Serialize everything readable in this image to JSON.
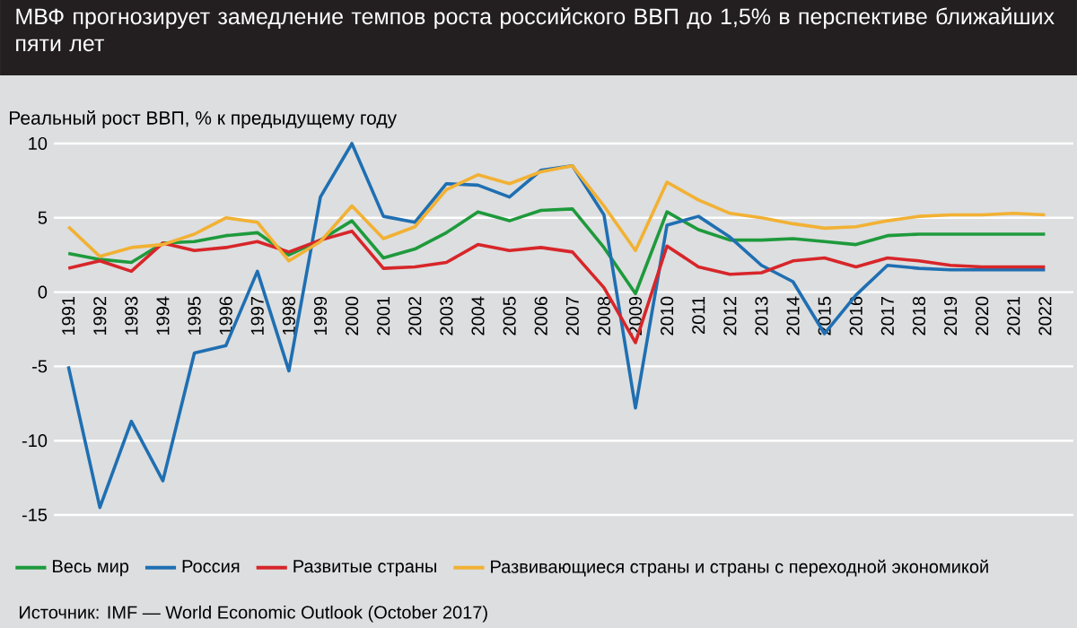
{
  "chart_data": {
    "type": "line",
    "title": "МВФ прогнозирует замедление темпов роста российского ВВП до 1,5% в перспективе ближайших пяти лет",
    "ylabel": "Реальный рост ВВП, % к предыдущему году",
    "annotations": [
      "Источник: IMF — World Economic Outlook (October 2017)"
    ],
    "categories": [
      "1991",
      "1992",
      "1993",
      "1994",
      "1995",
      "1996",
      "1997",
      "1998",
      "1999",
      "2000",
      "2001",
      "2002",
      "2003",
      "2004",
      "2005",
      "2006",
      "2007",
      "2008",
      "2009",
      "2010",
      "2011",
      "2012",
      "2013",
      "2014",
      "2015",
      "2016",
      "2017",
      "2018",
      "2019",
      "2020",
      "2021",
      "2022"
    ],
    "ylim": [
      -15,
      10
    ],
    "yticks": [
      -15,
      -10,
      -5,
      0,
      5,
      10
    ],
    "grid": "y",
    "legend": "bottom",
    "series": [
      {
        "name": "Весь мир",
        "color": "#1e9a3c",
        "values": [
          2.6,
          2.2,
          2.0,
          3.3,
          3.4,
          3.8,
          4.0,
          2.5,
          3.5,
          4.8,
          2.3,
          2.9,
          4.0,
          5.4,
          4.8,
          5.5,
          5.6,
          3.0,
          -0.1,
          5.4,
          4.2,
          3.5,
          3.5,
          3.6,
          3.4,
          3.2,
          3.8,
          3.9,
          3.9,
          3.9,
          3.9,
          3.9
        ]
      },
      {
        "name": "Россия",
        "color": "#1f6fb2",
        "values": [
          -5.0,
          -14.5,
          -8.7,
          -12.7,
          -4.1,
          -3.6,
          1.4,
          -5.3,
          6.4,
          10.0,
          5.1,
          4.7,
          7.3,
          7.2,
          6.4,
          8.2,
          8.5,
          5.2,
          -7.8,
          4.5,
          5.1,
          3.7,
          1.8,
          0.7,
          -2.8,
          -0.2,
          1.8,
          1.6,
          1.5,
          1.5,
          1.5,
          1.5
        ]
      },
      {
        "name": "Развитые страны",
        "color": "#d7262a",
        "values": [
          1.6,
          2.1,
          1.4,
          3.3,
          2.8,
          3.0,
          3.4,
          2.7,
          3.5,
          4.1,
          1.6,
          1.7,
          2.0,
          3.2,
          2.8,
          3.0,
          2.7,
          0.3,
          -3.4,
          3.1,
          1.7,
          1.2,
          1.3,
          2.1,
          2.3,
          1.7,
          2.3,
          2.1,
          1.8,
          1.7,
          1.7,
          1.7
        ]
      },
      {
        "name": "Развивающиеся страны и страны с переходной экономикой",
        "color": "#f2b134",
        "values": [
          4.4,
          2.4,
          3.0,
          3.2,
          3.9,
          5.0,
          4.7,
          2.1,
          3.4,
          5.8,
          3.6,
          4.4,
          6.9,
          7.9,
          7.3,
          8.1,
          8.5,
          5.8,
          2.8,
          7.4,
          6.2,
          5.3,
          5.0,
          4.6,
          4.3,
          4.4,
          4.8,
          5.1,
          5.2,
          5.2,
          5.3,
          5.2
        ]
      }
    ]
  }
}
